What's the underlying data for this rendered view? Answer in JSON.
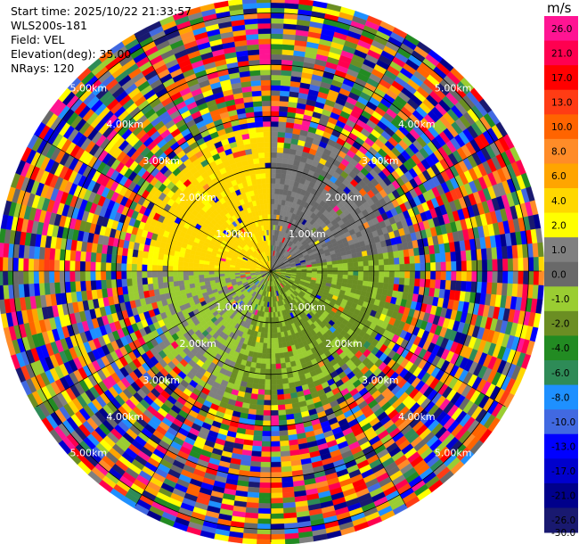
{
  "header": {
    "start_time": "Start time: 2025/10/22 21:33:57",
    "instrument": "WLS200s-181",
    "field": "Field: VEL",
    "elevation": "Elevation(deg): 35.00",
    "nrays": "NRays: 120"
  },
  "chart_data": {
    "type": "heatmap",
    "projection": "polar-ppi",
    "field": "VEL",
    "unit": "m/s",
    "elevation_deg": 35.0,
    "n_rays": 120,
    "max_range_km": 5.25,
    "range_rings_km": [
      1,
      2,
      3,
      4,
      5
    ],
    "ring_labels": [
      "1.00km",
      "2.00km",
      "3.00km",
      "4.00km",
      "5.00km"
    ],
    "colorbar": {
      "ticks": [
        "26.0",
        "21.0",
        "17.0",
        "13.0",
        "10.0",
        "8.0",
        "6.0",
        "4.0",
        "2.0",
        "1.0",
        "0.0",
        "-1.0",
        "-2.0",
        "-4.0",
        "-6.0",
        "-8.0",
        "-10.0",
        "-13.0",
        "-17.0",
        "-21.0",
        "-26.0",
        "-30.0"
      ],
      "colors": [
        "#ff1493",
        "#ff0050",
        "#ff0000",
        "#ff3c14",
        "#ff6400",
        "#ff8c28",
        "#ffa500",
        "#ffd700",
        "#ffff00",
        "#808080",
        "#696969",
        "#9acd32",
        "#6b8e23",
        "#228b22",
        "#2e8b57",
        "#1e90ff",
        "#4169e1",
        "#0000ff",
        "#0000cd",
        "#00008b",
        "#191970"
      ]
    }
  }
}
